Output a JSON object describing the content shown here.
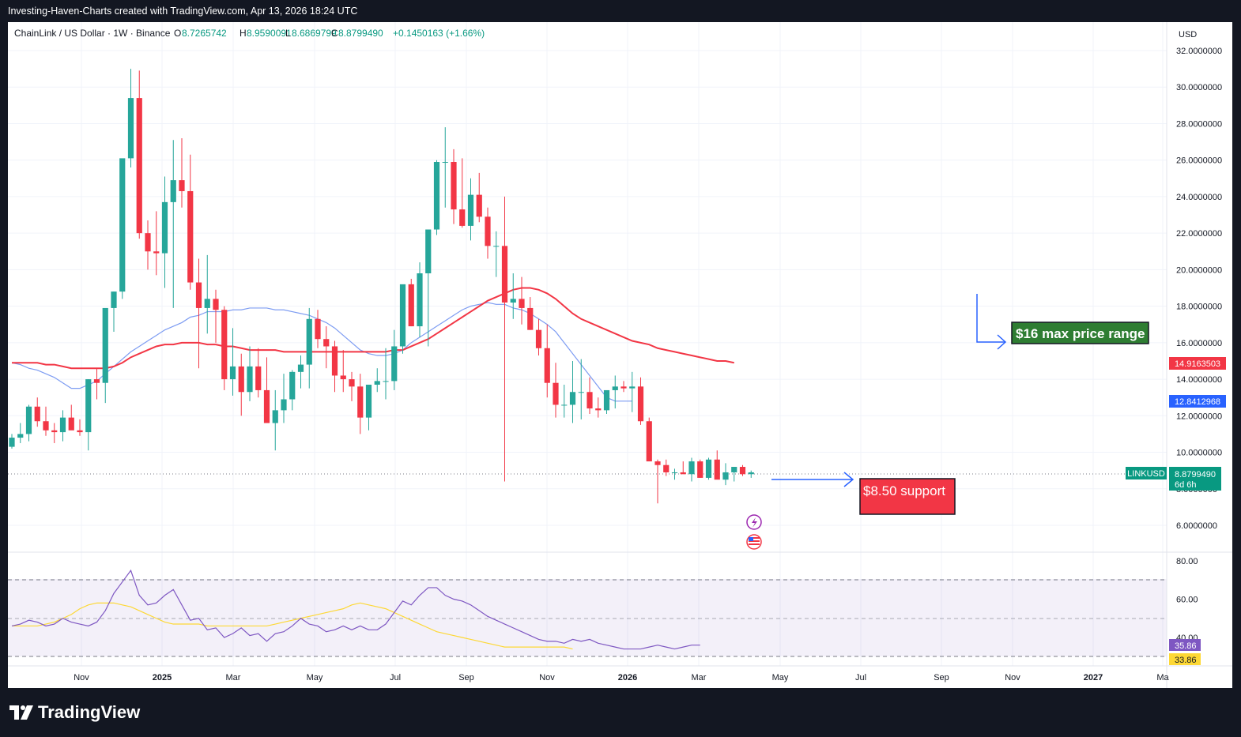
{
  "header": {
    "attribution": "Investing-Haven-Charts created with TradingView.com, Apr 13, 2026 18:24 UTC"
  },
  "legend": {
    "symbol": "ChainLink / US Dollar · 1W · Binance",
    "open_label": "O",
    "open": "8.7265742",
    "high_label": "H",
    "high": "8.9590091",
    "low_label": "L",
    "low": "8.6869799",
    "close_label": "C",
    "close": "8.8799490",
    "change": "+0.1450163 (+1.66%)"
  },
  "price_axis": {
    "currency": "USD",
    "ticks": [
      "32.0000000",
      "30.0000000",
      "28.0000000",
      "26.0000000",
      "24.0000000",
      "22.0000000",
      "20.0000000",
      "18.0000000",
      "16.0000000",
      "14.0000000",
      "12.0000000",
      "10.0000000",
      "8.0000000",
      "6.0000000"
    ],
    "tick_values": [
      32,
      30,
      28,
      26,
      24,
      22,
      20,
      18,
      16,
      14,
      12,
      10,
      8,
      6
    ]
  },
  "price_labels": {
    "ma_red": "14.9163503",
    "ma_blue": "12.8412968",
    "last_symbol": "LINKUSD",
    "last_price": "8.8799490",
    "countdown": "6d 6h"
  },
  "rsi_axis": {
    "ticks": [
      "80.00",
      "60.00",
      "40.00"
    ],
    "tick_values": [
      80,
      60,
      40
    ],
    "rsi_value": "35.86",
    "rsi_ma_value": "33.86"
  },
  "time_axis": {
    "labels": [
      "Nov",
      "2025",
      "Mar",
      "May",
      "Jul",
      "Sep",
      "Nov",
      "2026",
      "Mar",
      "May",
      "Jul",
      "Sep",
      "Nov",
      "2027",
      "Ma"
    ]
  },
  "annotations": {
    "resistance": "$16 max price range",
    "support": "$8.50 support"
  },
  "colors": {
    "up": "#26a69a",
    "down": "#f23645",
    "ma_red": "#f23645",
    "ma_blue": "#7d9cf2",
    "rsi": "#7e57c2",
    "rsi_ma": "#fdd835",
    "resist_box": "#2e7d32",
    "support_box": "#f23645",
    "arrow": "#2962ff"
  },
  "chart_data": {
    "type": "candlestick",
    "interval": "1W",
    "series": [
      {
        "name": "LINKUSD",
        "candles_ohlc": [
          [
            10.3,
            11.0,
            10.2,
            10.8
          ],
          [
            10.8,
            11.6,
            10.5,
            11.0
          ],
          [
            11.0,
            12.6,
            10.6,
            12.5
          ],
          [
            12.5,
            13.0,
            11.4,
            11.7
          ],
          [
            11.7,
            12.5,
            10.9,
            11.2
          ],
          [
            11.2,
            11.6,
            10.5,
            11.1
          ],
          [
            11.1,
            12.3,
            10.6,
            11.9
          ],
          [
            11.9,
            12.6,
            11.4,
            11.2
          ],
          [
            11.2,
            11.8,
            10.9,
            11.1
          ],
          [
            11.1,
            14.0,
            10.1,
            14.0
          ],
          [
            14.0,
            14.6,
            12.9,
            13.8
          ],
          [
            13.8,
            14.5,
            12.7,
            17.9
          ],
          [
            17.9,
            18.8,
            16.6,
            18.8
          ],
          [
            18.8,
            20.3,
            18.4,
            26.1
          ],
          [
            26.1,
            31.0,
            25.6,
            29.4
          ],
          [
            29.4,
            30.9,
            21.7,
            22.0
          ],
          [
            22.0,
            22.7,
            20.0,
            21.0
          ],
          [
            21.0,
            23.2,
            19.7,
            20.9
          ],
          [
            20.9,
            25.1,
            19.0,
            23.7
          ],
          [
            23.7,
            27.1,
            17.9,
            24.9
          ],
          [
            24.9,
            27.2,
            23.4,
            24.3
          ],
          [
            24.3,
            26.3,
            18.9,
            19.3
          ],
          [
            19.3,
            20.6,
            14.6,
            17.9
          ],
          [
            17.9,
            20.8,
            16.5,
            18.4
          ],
          [
            18.4,
            18.9,
            16.0,
            17.8
          ],
          [
            17.8,
            18.0,
            13.4,
            14.0
          ],
          [
            14.0,
            16.8,
            13.1,
            14.7
          ],
          [
            14.7,
            15.4,
            12.0,
            13.3
          ],
          [
            13.3,
            15.8,
            12.8,
            14.7
          ],
          [
            14.7,
            15.7,
            13.0,
            13.4
          ],
          [
            13.4,
            15.2,
            11.7,
            11.6
          ],
          [
            11.6,
            13.4,
            10.1,
            12.3
          ],
          [
            12.3,
            14.3,
            11.6,
            12.9
          ],
          [
            12.9,
            14.5,
            12.3,
            14.4
          ],
          [
            14.4,
            15.3,
            13.5,
            14.8
          ],
          [
            14.8,
            17.9,
            13.5,
            17.3
          ],
          [
            17.3,
            17.8,
            15.7,
            16.2
          ],
          [
            16.2,
            16.9,
            14.6,
            15.8
          ],
          [
            15.8,
            16.1,
            13.3,
            14.2
          ],
          [
            14.2,
            15.6,
            13.3,
            14.0
          ],
          [
            14.0,
            14.4,
            12.8,
            13.6
          ],
          [
            13.6,
            14.3,
            11.0,
            11.9
          ],
          [
            11.9,
            13.4,
            11.2,
            13.7
          ],
          [
            13.7,
            14.6,
            13.3,
            13.9
          ],
          [
            13.9,
            15.7,
            12.9,
            13.9
          ],
          [
            13.9,
            16.7,
            13.4,
            15.8
          ],
          [
            15.8,
            18.8,
            15.4,
            19.2
          ],
          [
            19.2,
            19.5,
            16.9,
            16.9
          ],
          [
            16.9,
            20.4,
            16.3,
            19.8
          ],
          [
            19.8,
            21.8,
            15.8,
            22.2
          ],
          [
            22.2,
            26.0,
            21.9,
            25.9
          ],
          [
            25.9,
            27.8,
            23.4,
            25.9
          ],
          [
            25.9,
            26.6,
            22.5,
            23.3
          ],
          [
            23.3,
            26.1,
            22.3,
            22.4
          ],
          [
            22.4,
            25.0,
            21.6,
            24.1
          ],
          [
            24.1,
            25.3,
            22.6,
            22.9
          ],
          [
            22.9,
            23.4,
            20.6,
            21.3
          ],
          [
            21.3,
            22.1,
            19.6,
            21.3
          ],
          [
            21.3,
            24.0,
            8.4,
            18.2
          ],
          [
            18.2,
            19.8,
            17.3,
            18.4
          ],
          [
            18.4,
            19.6,
            17.0,
            17.9
          ],
          [
            17.9,
            18.5,
            16.7,
            16.7
          ],
          [
            16.7,
            17.3,
            15.3,
            15.7
          ],
          [
            15.7,
            17.0,
            13.0,
            13.8
          ],
          [
            13.8,
            14.9,
            11.9,
            12.6
          ],
          [
            12.6,
            13.7,
            11.9,
            12.6
          ],
          [
            12.6,
            15.0,
            11.6,
            13.3
          ],
          [
            13.3,
            15.1,
            11.8,
            13.3
          ],
          [
            13.3,
            14.1,
            12.1,
            12.4
          ],
          [
            12.4,
            13.0,
            11.9,
            12.3
          ],
          [
            12.3,
            13.3,
            12.1,
            13.4
          ],
          [
            13.4,
            14.2,
            12.4,
            13.6
          ],
          [
            13.6,
            13.9,
            13.3,
            13.5
          ],
          [
            13.5,
            14.4,
            12.2,
            13.6
          ],
          [
            13.6,
            14.1,
            11.5,
            11.7
          ],
          [
            11.7,
            11.9,
            10.3,
            9.5
          ],
          [
            9.5,
            9.6,
            7.2,
            9.3
          ],
          [
            9.3,
            9.6,
            8.7,
            8.9
          ],
          [
            8.9,
            9.1,
            8.5,
            8.9
          ],
          [
            8.9,
            9.5,
            8.8,
            8.8
          ],
          [
            8.8,
            9.7,
            8.4,
            9.5
          ],
          [
            9.5,
            9.6,
            8.6,
            8.6
          ],
          [
            8.6,
            9.7,
            8.5,
            9.6
          ],
          [
            9.6,
            10.1,
            8.9,
            8.5
          ],
          [
            8.5,
            9.4,
            8.2,
            8.9
          ],
          [
            8.9,
            9.2,
            8.4,
            9.2
          ],
          [
            9.2,
            9.3,
            8.7,
            8.8
          ],
          [
            8.8,
            9.0,
            8.6,
            8.9
          ]
        ]
      },
      {
        "name": "MA (red)",
        "values": [
          14.9,
          14.9,
          14.9,
          14.9,
          14.8,
          14.8,
          14.7,
          14.6,
          14.6,
          14.6,
          14.6,
          14.6,
          14.7,
          14.9,
          15.2,
          15.4,
          15.6,
          15.8,
          15.9,
          15.9,
          16.0,
          16.0,
          16.0,
          15.9,
          15.9,
          15.8,
          15.8,
          15.7,
          15.6,
          15.6,
          15.6,
          15.6,
          15.5,
          15.5,
          15.5,
          15.5,
          15.5,
          15.5,
          15.5,
          15.5,
          15.5,
          15.5,
          15.5,
          15.5,
          15.5,
          15.6,
          15.6,
          15.8,
          16.0,
          16.2,
          16.5,
          16.8,
          17.1,
          17.4,
          17.7,
          18.0,
          18.3,
          18.5,
          18.7,
          18.9,
          19.0,
          19.0,
          18.9,
          18.7,
          18.4,
          18.0,
          17.6,
          17.3,
          17.1,
          16.9,
          16.7,
          16.5,
          16.3,
          16.1,
          16.0,
          15.9,
          15.7,
          15.6,
          15.5,
          15.4,
          15.3,
          15.2,
          15.1,
          15.0,
          15.0,
          14.9
        ]
      },
      {
        "name": "MA (blue)",
        "values": [
          14.9,
          14.8,
          14.6,
          14.5,
          14.3,
          14.1,
          13.8,
          13.5,
          13.5,
          13.7,
          13.9,
          14.3,
          14.7,
          15.1,
          15.5,
          15.8,
          16.1,
          16.4,
          16.7,
          16.9,
          17.1,
          17.4,
          17.5,
          17.7,
          17.7,
          17.7,
          17.8,
          17.8,
          17.9,
          17.9,
          17.9,
          17.8,
          17.8,
          17.7,
          17.6,
          17.5,
          17.3,
          17.1,
          16.8,
          16.4,
          16.0,
          15.6,
          15.4,
          15.3,
          15.3,
          15.4,
          15.6,
          16.0,
          16.3,
          16.6,
          16.9,
          17.2,
          17.5,
          17.8,
          18.0,
          18.1,
          18.2,
          18.1,
          18.1,
          17.9,
          17.8,
          17.6,
          17.3,
          17.0,
          16.6,
          16.0,
          15.4,
          14.8,
          14.2,
          13.6,
          13.0,
          12.8,
          12.8,
          12.8
        ]
      },
      {
        "name": "RSI",
        "values": [
          46,
          47,
          49,
          48,
          46,
          47,
          50,
          48,
          47,
          46,
          48,
          54,
          63,
          69,
          75,
          62,
          57,
          58,
          62,
          65,
          57,
          49,
          50,
          44,
          45,
          40,
          42,
          45,
          41,
          42,
          38,
          42,
          43,
          46,
          50,
          47,
          46,
          43,
          44,
          46,
          44,
          46,
          44,
          44,
          47,
          53,
          59,
          57,
          62,
          66,
          66,
          62,
          60,
          59,
          57,
          54,
          51,
          49,
          47,
          45,
          43,
          41,
          39,
          38,
          38,
          37,
          39,
          38,
          39,
          37,
          36,
          35,
          34,
          34,
          34,
          35,
          36,
          35,
          34,
          35,
          36,
          36
        ]
      },
      {
        "name": "RSI MA",
        "values": [
          46,
          46,
          46,
          46,
          47,
          48,
          50,
          52,
          55,
          57,
          58,
          58,
          58,
          57,
          56,
          54,
          52,
          50,
          48,
          47,
          47,
          47,
          47,
          46,
          46,
          46,
          46,
          46,
          46,
          46,
          46,
          47,
          48,
          49,
          50,
          51,
          52,
          53,
          54,
          55,
          57,
          58,
          57,
          56,
          55,
          53,
          51,
          49,
          47,
          45,
          43,
          42,
          41,
          40,
          39,
          38,
          37,
          36,
          35,
          35,
          35,
          35,
          35,
          35,
          35,
          35,
          34
        ]
      }
    ],
    "y_axis": {
      "range": [
        5.5,
        33
      ],
      "label": "USD"
    },
    "rsi_axis": {
      "range": [
        30,
        85
      ]
    },
    "rsi_levels": [
      70,
      50,
      30
    ]
  }
}
